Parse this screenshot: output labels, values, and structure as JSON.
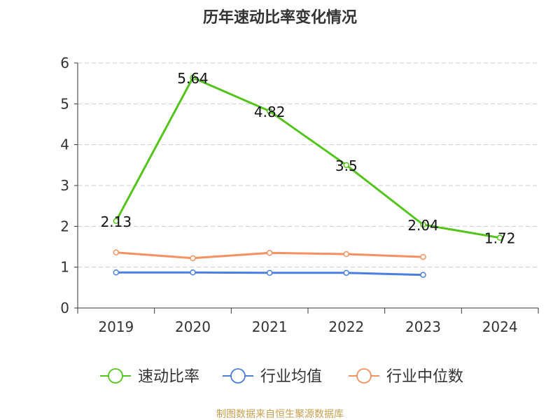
{
  "chart_data": {
    "type": "line",
    "title": "历年速动比率变化情况",
    "categories": [
      "2019",
      "2020",
      "2021",
      "2022",
      "2023",
      "2024"
    ],
    "ylim": [
      0,
      6
    ],
    "yticks": [
      "0",
      "1",
      "2",
      "3",
      "4",
      "5",
      "6"
    ],
    "grid": true,
    "legend_position": "bottom",
    "series": [
      {
        "name": "速动比率",
        "color": "#52c41a",
        "show_labels": true,
        "labels": [
          "2.13",
          "5.64",
          "4.82",
          "3.5",
          "2.04",
          "1.72"
        ],
        "values": [
          2.13,
          5.64,
          4.82,
          3.5,
          2.04,
          1.72
        ]
      },
      {
        "name": "行业均值",
        "color": "#4a7ee0",
        "show_labels": false,
        "values": [
          0.87,
          0.87,
          0.86,
          0.86,
          0.81,
          null
        ]
      },
      {
        "name": "行业中位数",
        "color": "#f79160",
        "show_labels": false,
        "values": [
          1.36,
          1.22,
          1.35,
          1.32,
          1.25,
          null
        ]
      }
    ],
    "source": "制图数据来自恒生聚源数据库"
  }
}
